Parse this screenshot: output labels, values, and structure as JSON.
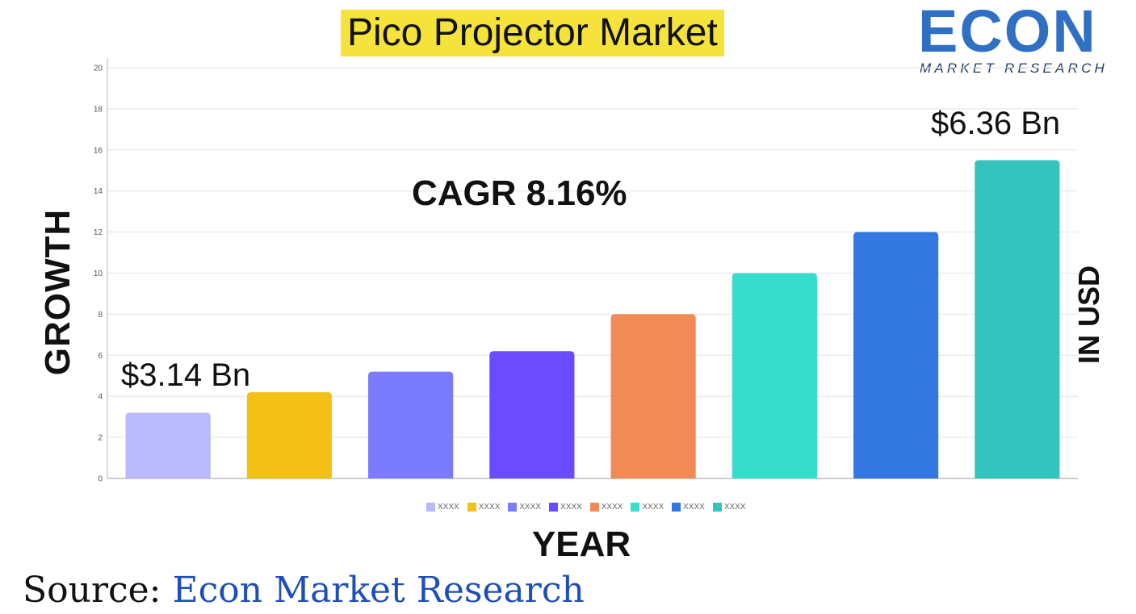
{
  "title": "Pico Projector Market",
  "logo": {
    "main": "ECON",
    "sub": "MARKET RESEARCH"
  },
  "cagr_text": "CAGR 8.16%",
  "annotations": {
    "start": "$3.14 Bn",
    "end": "$6.36 Bn"
  },
  "source": {
    "prefix": "Source:",
    "name": " Econ Market Research"
  },
  "chart_data": {
    "type": "bar",
    "xlabel": "YEAR",
    "ylabel": "GROWTH",
    "right_label": "IN USD",
    "ylim": [
      0,
      20
    ],
    "yticks": [
      0,
      2,
      4,
      6,
      8,
      10,
      12,
      14,
      16,
      18,
      20
    ],
    "grid": true,
    "legend_position": "bottom",
    "categories": [
      "XXXX",
      "XXXX",
      "XXXX",
      "XXXX",
      "XXXX",
      "XXXX",
      "XXXX",
      "XXXX"
    ],
    "values": [
      3.2,
      4.2,
      5.2,
      6.2,
      8.0,
      10.0,
      12.0,
      15.5
    ],
    "colors": [
      "#b9b9ff",
      "#f3c015",
      "#7b7bff",
      "#6a4bff",
      "#f28a55",
      "#38dccb",
      "#3278e0",
      "#34c4bd"
    ]
  }
}
